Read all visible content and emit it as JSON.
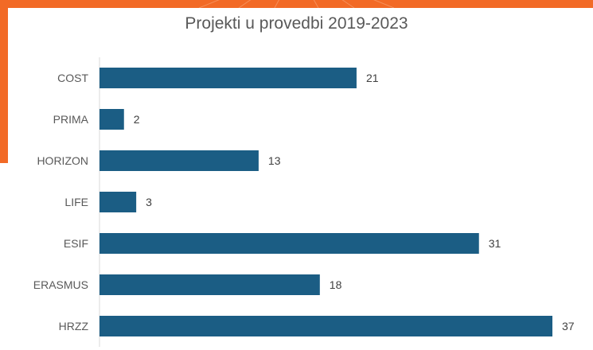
{
  "chart_data": {
    "type": "bar",
    "orientation": "horizontal",
    "title": "Projekti u provedbi 2019-2023",
    "categories": [
      "COST",
      "PRIMA",
      "HORIZON",
      "LIFE",
      "ESIF",
      "ERASMUS",
      "HRZZ"
    ],
    "values": [
      21,
      2,
      13,
      3,
      31,
      18,
      37
    ],
    "xlim": [
      0,
      37
    ],
    "grid": false,
    "legend": "none",
    "bar_color": "#1b5d84",
    "data_labels": true
  },
  "colors": {
    "background_accent": "#f26a26",
    "text": "#595959"
  }
}
